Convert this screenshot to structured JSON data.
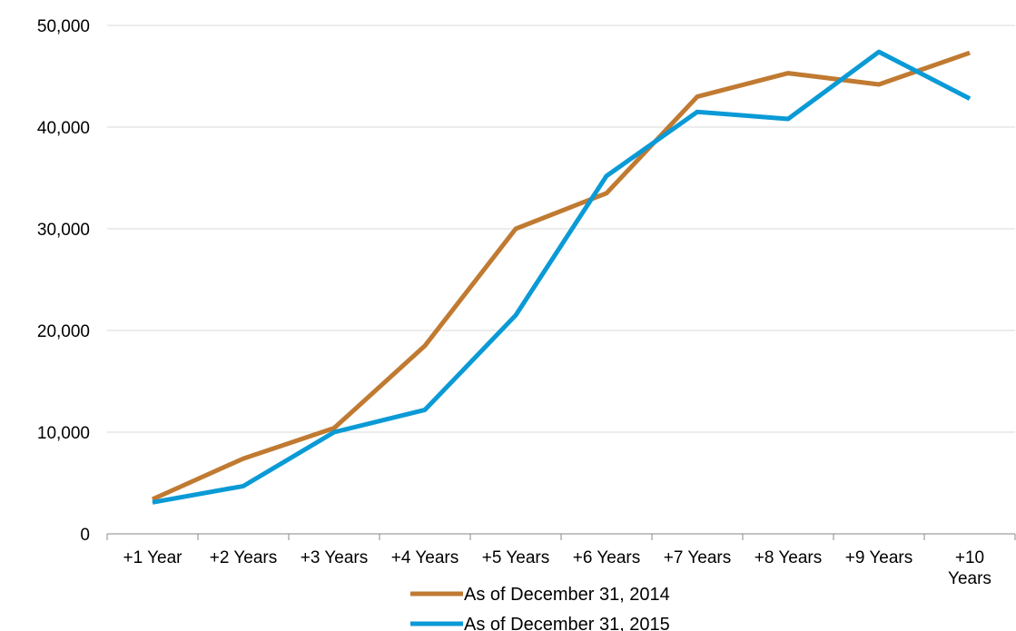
{
  "chart_data": {
    "type": "line",
    "categories": [
      "+1 Year",
      "+2 Years",
      "+3 Years",
      "+4 Years",
      "+5 Years",
      "+6 Years",
      "+7 Years",
      "+8 Years",
      "+9 Years",
      "+10 Years"
    ],
    "ylim": [
      0,
      50000
    ],
    "yticks": [
      0,
      10000,
      20000,
      30000,
      40000,
      50000
    ],
    "ytick_labels": [
      "0",
      "10,000",
      "20,000",
      "30,000",
      "40,000",
      "50,000"
    ],
    "grid": true,
    "legend_position": "bottom",
    "series": [
      {
        "name": "As of December 31, 2014",
        "color": "#C07A31",
        "values": [
          3400,
          7400,
          10400,
          18500,
          30000,
          33500,
          43000,
          45300,
          44200,
          47300
        ]
      },
      {
        "name": "As of December 31, 2015",
        "color": "#0A9AD6",
        "values": [
          3100,
          4700,
          10000,
          12200,
          21500,
          35200,
          41500,
          40800,
          47400,
          42800
        ]
      }
    ]
  }
}
